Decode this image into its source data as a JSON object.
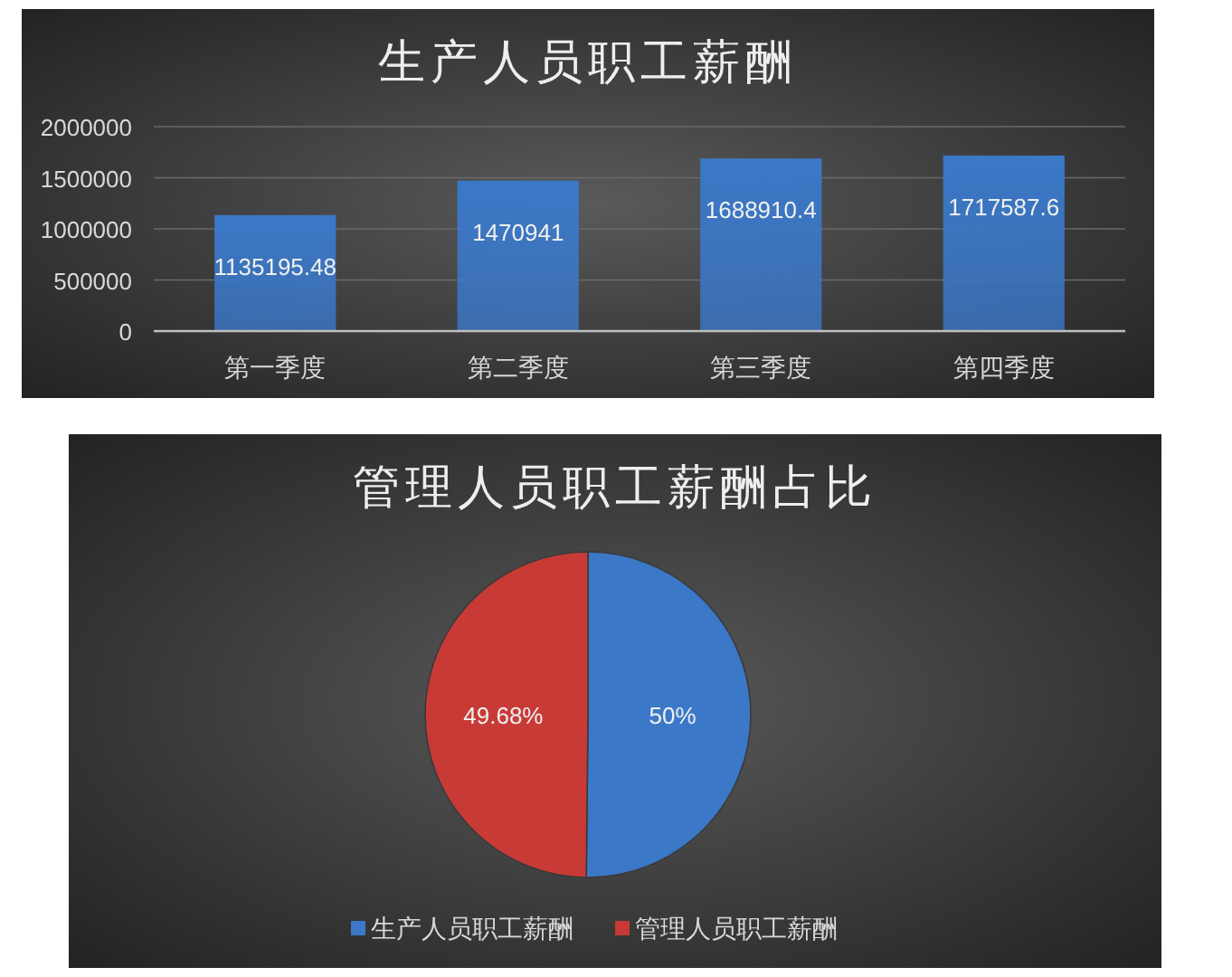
{
  "chart_data": [
    {
      "type": "bar",
      "title": "生产人员职工薪酬",
      "categories": [
        "第一季度",
        "第二季度",
        "第三季度",
        "第四季度"
      ],
      "values": [
        1135195.48,
        1470941,
        1688910.4,
        1717587.6
      ],
      "color": "#3b78c8",
      "ylim": [
        0,
        2000000
      ],
      "yticks": [
        0,
        500000,
        1000000,
        1500000,
        2000000
      ],
      "grid": "y",
      "data_labels": true
    },
    {
      "type": "pie",
      "title": "管理人员职工薪酬占比",
      "categories": [
        "生产人员职工薪酬",
        "管理人员职工薪酬"
      ],
      "values": [
        50,
        49.68
      ],
      "value_labels": [
        "50%",
        "49.68%"
      ],
      "colors": [
        "#3b78c8",
        "#c83a36"
      ],
      "legend": "bottom"
    }
  ]
}
